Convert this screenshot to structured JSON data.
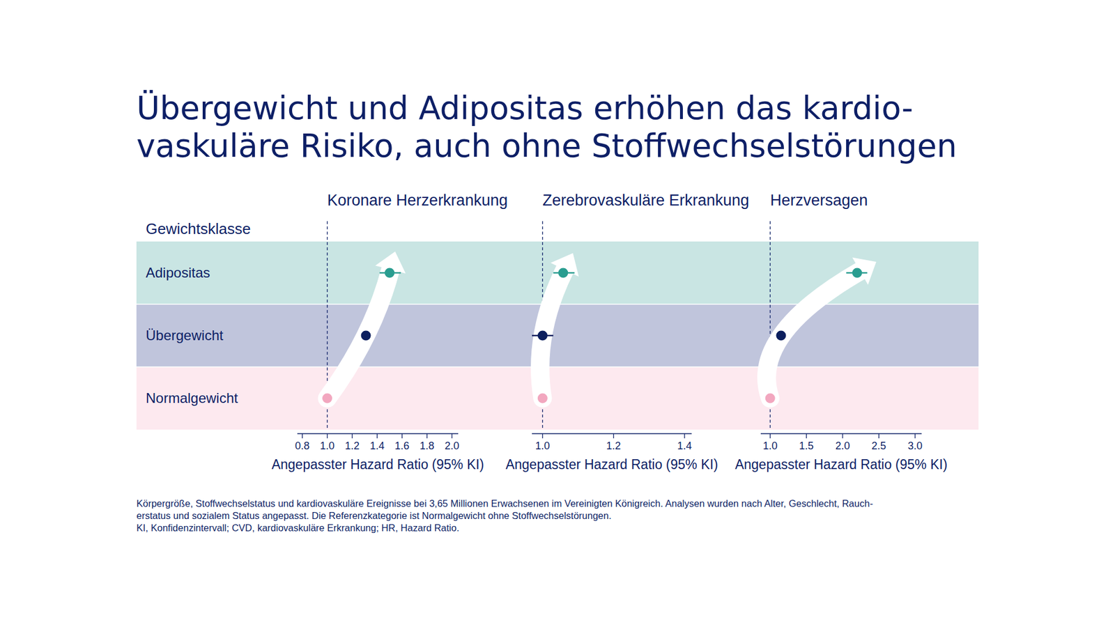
{
  "header": {
    "title": [
      "Übergewicht und Adipositas erhöhen das kardio-",
      "vaskuläre Risiko, auch ohne Stoffwechselstörungen"
    ],
    "row_label": "Gewichtsklasse",
    "footnote": [
      "Körpergröße, Stoffwechselstatus und kardiovaskuläre Ereignisse bei 3,65 Millionen Erwachsenen im Vereinigten Königreich. Analysen wurden nach Alter, Geschlecht, Rauch-",
      "erstatus und sozialem Status angepasst. Die Referenzkategorie ist Normalgewicht ohne Stoffwechselstörungen.",
      "KI, Konfidenzintervall; CVD, kardiovaskuläre Erkrankung; HR, Hazard Ratio."
    ]
  },
  "chart_data": [
    {
      "type": "forest",
      "title": "Koronare Herzerkrankung",
      "xlabel": "Angepasster Hazard Ratio (95% KI)",
      "categories": [
        "Normalgewicht",
        "Übergewicht",
        "Adipositas"
      ],
      "values": [
        1.0,
        1.31,
        1.5
      ],
      "ci_low": [
        null,
        1.29,
        1.42
      ],
      "ci_high": [
        null,
        1.33,
        1.59
      ],
      "colors": [
        "#f2a7bf",
        "#0c1f5e",
        "#2a9d90"
      ],
      "reference_line": 1,
      "xlim": [
        0.76,
        2.05
      ],
      "xticks": [
        0.8,
        {
          "value": 1,
          "label": "1.0"
        },
        1.2,
        1.4,
        1.6,
        1.8,
        {
          "value": 2,
          "label": "2.0"
        }
      ]
    },
    {
      "type": "forest",
      "title": "Zerebrovaskuläre Erkrankung",
      "xlabel": "Angepasster Hazard Ratio (95% KI)",
      "categories": [
        "Normalgewicht",
        "Übergewicht",
        "Adipositas"
      ],
      "values": [
        1.0,
        1.0,
        1.058
      ],
      "ci_low": [
        null,
        0.97,
        1.03
      ],
      "ci_high": [
        null,
        1.03,
        1.09
      ],
      "colors": [
        "#f2a7bf",
        "#0c1f5e",
        "#2a9d90"
      ],
      "reference_line": 1,
      "xlim": [
        0.97,
        1.42
      ],
      "xticks": [
        {
          "value": 1,
          "label": "1.0"
        },
        1.2,
        1.4
      ]
    },
    {
      "type": "forest",
      "title": "Herzversagen",
      "xlabel": "Angepasster Hazard Ratio (95% KI)",
      "categories": [
        "Normalgewicht",
        "Übergewicht",
        "Adipositas"
      ],
      "values": [
        1.0,
        1.15,
        2.2
      ],
      "ci_low": [
        null,
        1.12,
        2.05
      ],
      "ci_high": [
        null,
        1.18,
        2.34
      ],
      "colors": [
        "#f2a7bf",
        "#0c1f5e",
        "#2a9d90"
      ],
      "reference_line": 1,
      "xlim": [
        0.87,
        3.09
      ],
      "xticks": [
        {
          "value": 1,
          "label": "1.0"
        },
        1.5,
        {
          "value": 2,
          "label": "2.0"
        },
        2.5,
        {
          "value": 3,
          "label": "3.0"
        }
      ]
    }
  ]
}
